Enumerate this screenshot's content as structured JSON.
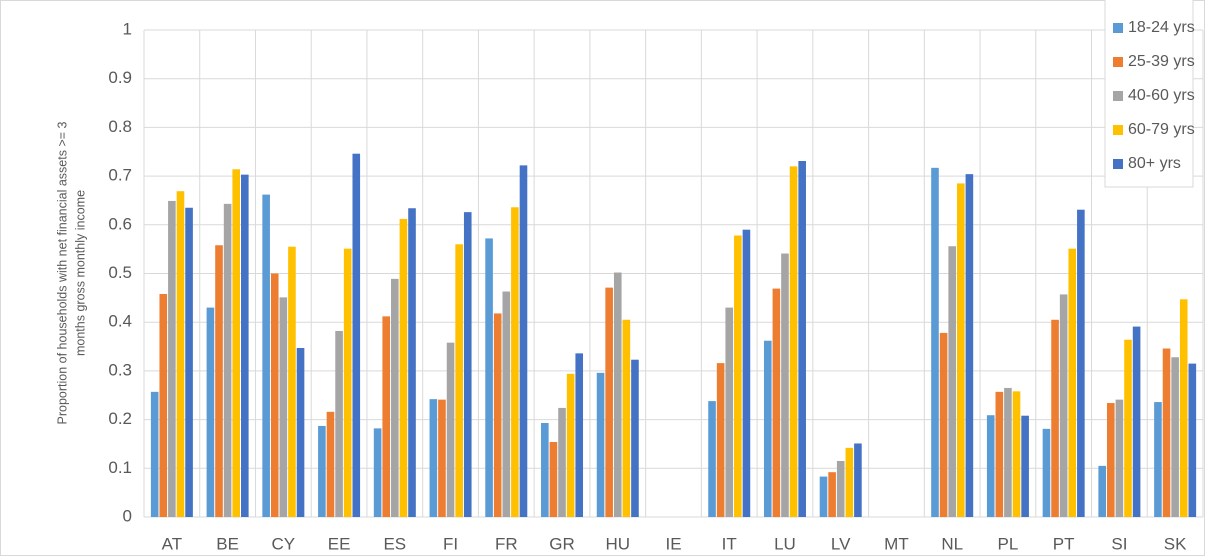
{
  "chart_data": {
    "type": "bar",
    "y_label": [
      "Proportion of households with net financial assets >= 3",
      "months gross monthly income"
    ],
    "categories": [
      "AT",
      "BE",
      "CY",
      "EE",
      "ES",
      "FI",
      "FR",
      "GR",
      "HU",
      "IE",
      "IT",
      "LU",
      "LV",
      "MT",
      "NL",
      "PL",
      "PT",
      "SI",
      "SK"
    ],
    "series": [
      {
        "name": "18-24 yrs",
        "color": "#5b9bd5",
        "values": [
          0.257,
          0.43,
          0.662,
          0.187,
          0.182,
          0.242,
          0.572,
          0.193,
          0.296,
          null,
          0.238,
          0.362,
          0.083,
          null,
          0.717,
          0.209,
          0.181,
          0.105,
          0.236
        ]
      },
      {
        "name": "25-39 yrs",
        "color": "#ed7d31",
        "values": [
          0.458,
          0.558,
          0.5,
          0.216,
          0.412,
          0.241,
          0.418,
          0.154,
          0.471,
          null,
          0.316,
          0.469,
          0.092,
          null,
          0.378,
          0.257,
          0.405,
          0.234,
          0.346
        ]
      },
      {
        "name": "40-60 yrs",
        "color": "#a5a5a5",
        "values": [
          0.649,
          0.643,
          0.451,
          0.382,
          0.489,
          0.358,
          0.463,
          0.224,
          0.502,
          null,
          0.43,
          0.541,
          0.115,
          null,
          0.556,
          0.265,
          0.457,
          0.241,
          0.328
        ]
      },
      {
        "name": "60-79 yrs",
        "color": "#ffc000",
        "values": [
          0.669,
          0.714,
          0.555,
          0.551,
          0.612,
          0.56,
          0.636,
          0.294,
          0.405,
          null,
          0.578,
          0.72,
          0.142,
          null,
          0.685,
          0.258,
          0.551,
          0.364,
          0.447
        ]
      },
      {
        "name": "80+ yrs",
        "color": "#4472c4",
        "values": [
          0.635,
          0.703,
          0.347,
          0.746,
          0.634,
          0.626,
          0.722,
          0.336,
          0.323,
          null,
          0.59,
          0.731,
          0.151,
          null,
          0.704,
          0.208,
          0.631,
          0.391,
          0.315
        ]
      }
    ],
    "ylim": [
      0,
      1
    ],
    "yticks": [
      0,
      0.1,
      0.2,
      0.3,
      0.4,
      0.5,
      0.6,
      0.7,
      0.8,
      0.9,
      1
    ],
    "grid": true,
    "legend": "top-right"
  }
}
